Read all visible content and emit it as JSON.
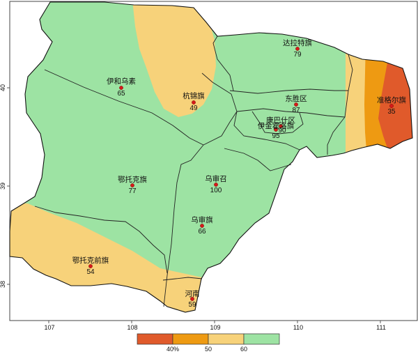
{
  "map": {
    "x_ticks": [
      "107",
      "108",
      "109",
      "110",
      "111"
    ],
    "y_ticks": [
      "40",
      "39",
      "38"
    ],
    "colors": {
      "below_40": "#e05a2b",
      "40_50": "#ee9a12",
      "50_60": "#f7d27a",
      "above_60": "#9de3a3",
      "station_dot": "#d61a1a",
      "frame": "#444444",
      "background": "#ffffff"
    },
    "legend": {
      "breaks": [
        "40%",
        "50",
        "60"
      ]
    },
    "stations": [
      {
        "id": "yihewusu",
        "name": "伊和乌素",
        "value": "65"
      },
      {
        "id": "hangjinqi",
        "name": "杭锦旗",
        "value": "49"
      },
      {
        "id": "dalateqi",
        "name": "达拉特旗",
        "value": "79"
      },
      {
        "id": "dongshengqu",
        "name": "东胜区",
        "value": "87"
      },
      {
        "id": "zhungeerqi",
        "name": "准格尔旗",
        "value": "35"
      },
      {
        "id": "kangbashiqu",
        "name": "康巴什区",
        "value": "90"
      },
      {
        "id": "yijinhuoluoqi",
        "name": "伊金霍洛旗",
        "value": "95"
      },
      {
        "id": "etuokeqi",
        "name": "鄂托克旗",
        "value": "77"
      },
      {
        "id": "wushenzhao",
        "name": "乌审召",
        "value": "100"
      },
      {
        "id": "wushenqi",
        "name": "乌审旗",
        "value": "66"
      },
      {
        "id": "etuokeqianqi",
        "name": "鄂托克前旗",
        "value": "54"
      },
      {
        "id": "henan",
        "name": "河南",
        "value": "59"
      }
    ]
  }
}
